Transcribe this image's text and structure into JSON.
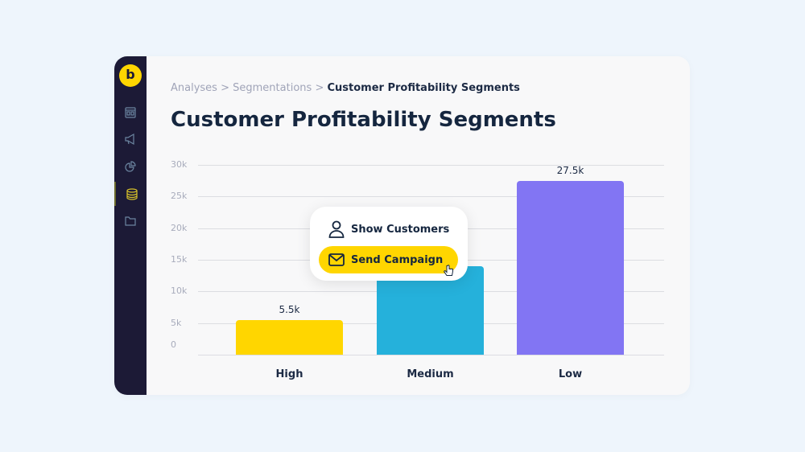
{
  "sidebar": {
    "logo": "b",
    "items": [
      {
        "icon": "dashboard-icon"
      },
      {
        "icon": "megaphone-icon"
      },
      {
        "icon": "pie-chart-icon"
      },
      {
        "icon": "database-icon",
        "active": true
      },
      {
        "icon": "folder-icon"
      }
    ]
  },
  "breadcrumb": {
    "items": [
      "Analyses",
      "Segmentations"
    ],
    "separator": ">",
    "current": "Customer Profitability Segments"
  },
  "page_title": "Customer Profitability Segments",
  "popup": {
    "show_customers": "Show Customers",
    "send_campaign": "Send Campaign"
  },
  "colors": {
    "accent": "#ffd600",
    "sidebar": "#1c1a36"
  },
  "chart_data": {
    "type": "bar",
    "categories": [
      "High",
      "Medium",
      "Low"
    ],
    "values": [
      5.5,
      14,
      27.5
    ],
    "data_labels": [
      "5.5k",
      "",
      "27.5k"
    ],
    "colors": [
      "#ffd600",
      "#25b1db",
      "#8275f3"
    ],
    "yticks": [
      "0",
      "5k",
      "10k",
      "15k",
      "20k",
      "25k",
      "30k"
    ],
    "ylim": [
      0,
      30
    ],
    "grid": true
  }
}
